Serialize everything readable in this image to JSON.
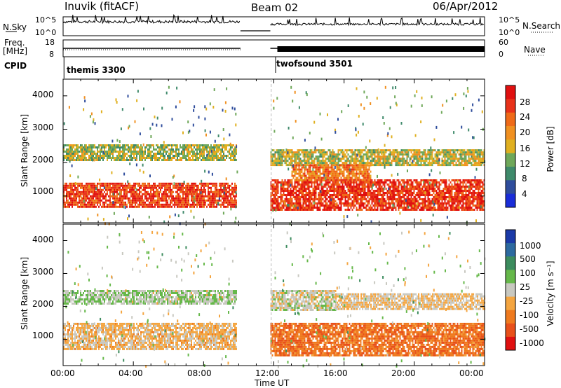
{
  "header": {
    "station": "Inuvik (fitACF)",
    "beam": "Beam 02",
    "date": "06/Apr/2012"
  },
  "side_labels": {
    "nsky": "N.Sky",
    "freq": "Freq.",
    "mhz": "[MHz]",
    "cpid": "CPID",
    "nsearch": "N.Search",
    "nave": "Nave",
    "nsky_ticks": [
      "10^5",
      "10^0"
    ],
    "freq_ticks": [
      "18",
      "8"
    ],
    "nsearch_ticks": [
      "10^5",
      "10^0"
    ],
    "nave_ticks": [
      "60",
      "0"
    ]
  },
  "modes": [
    {
      "name": "themis 3300"
    },
    {
      "name": "twofsound 3501"
    }
  ],
  "panels": {
    "power": {
      "ylabel": "Slant Range [km]",
      "yticks": [
        "4000",
        "3000",
        "2000",
        "1000"
      ],
      "cbar_label": "Power [dB]",
      "cbar_ticks": [
        "28",
        "24",
        "20",
        "16",
        "12",
        "8",
        "4"
      ]
    },
    "velocity": {
      "ylabel": "Slant Range [km]",
      "yticks": [
        "4000",
        "3000",
        "2000",
        "1000"
      ],
      "cbar_label": "Velocity [m s⁻¹]",
      "cbar_ticks": [
        "1000",
        "500",
        "100",
        "25",
        "-25",
        "-100",
        "-500",
        "-1000"
      ]
    }
  },
  "xaxis": {
    "label": "Time UT",
    "ticks": [
      "00:00",
      "04:00",
      "08:00",
      "12:00",
      "16:00",
      "20:00",
      "00:00"
    ]
  },
  "colors": {
    "power_scale": [
      "#1a2dd8",
      "#2f4d9c",
      "#3f8a6b",
      "#6fa85a",
      "#e0b020",
      "#f09020",
      "#ef6a18",
      "#e8321a",
      "#e01010"
    ],
    "velocity_scale": [
      "#1b3aa8",
      "#2d6aa0",
      "#3c8c5e",
      "#66b84a",
      "#c8c8c0",
      "#f4a540",
      "#ef7a1e",
      "#e8501a",
      "#e01010"
    ]
  },
  "chart_data": [
    {
      "type": "line",
      "title": "N.Sky / N.Search",
      "x_range_hours": [
        0,
        24
      ],
      "data_gap_hours": [
        10.1,
        11.8
      ],
      "note_visible": "dense noise-level trace near top of panel before and after gap"
    },
    {
      "type": "line",
      "title": "Freq / Nave",
      "freq_mhz_approx": [
        {
          "x": 0,
          "y": 10.5
        },
        {
          "x": 10,
          "y": 10.5
        },
        {
          "x": 11.8,
          "y": 10.5
        },
        {
          "x": 24,
          "y": 10.5
        }
      ],
      "nave_approx": [
        {
          "x": 0,
          "y": 55
        },
        {
          "x": 10,
          "y": 55
        },
        {
          "x": 12.2,
          "y": 20
        },
        {
          "x": 24,
          "y": 20
        }
      ]
    },
    {
      "type": "heatmap",
      "title": "Power [dB]",
      "xlim_hours": [
        0,
        24
      ],
      "ylim_km": [
        200,
        4500
      ],
      "bands": [
        {
          "start_h": 0.0,
          "end_h": 9.9,
          "range_km": [
            700,
            1400
          ],
          "level_db": 26
        },
        {
          "start_h": 0.0,
          "end_h": 9.9,
          "range_km": [
            2100,
            2550
          ],
          "level_db": 14
        },
        {
          "start_h": 11.8,
          "end_h": 24.0,
          "range_km": [
            600,
            1500
          ],
          "level_db": 27
        },
        {
          "start_h": 11.8,
          "end_h": 24.0,
          "range_km": [
            1950,
            2400
          ],
          "level_db": 15
        },
        {
          "start_h": 13.0,
          "end_h": 17.5,
          "range_km": [
            1500,
            1950
          ],
          "level_db": 22
        }
      ]
    },
    {
      "type": "heatmap",
      "title": "Velocity [m s⁻¹]",
      "xlim_hours": [
        0,
        24
      ],
      "ylim_km": [
        200,
        4500
      ],
      "bands": [
        {
          "start_h": 0.0,
          "end_h": 9.9,
          "range_km": [
            700,
            1500
          ],
          "velocity": -200
        },
        {
          "start_h": 0.0,
          "end_h": 9.9,
          "range_km": [
            2100,
            2500
          ],
          "velocity": 100
        },
        {
          "start_h": 11.8,
          "end_h": 24.0,
          "range_km": [
            500,
            1500
          ],
          "velocity": -600
        },
        {
          "start_h": 11.8,
          "end_h": 15.5,
          "range_km": [
            1900,
            2500
          ],
          "velocity": 0
        },
        {
          "start_h": 15.5,
          "end_h": 24.0,
          "range_km": [
            1900,
            2400
          ],
          "velocity": -150
        }
      ]
    }
  ]
}
